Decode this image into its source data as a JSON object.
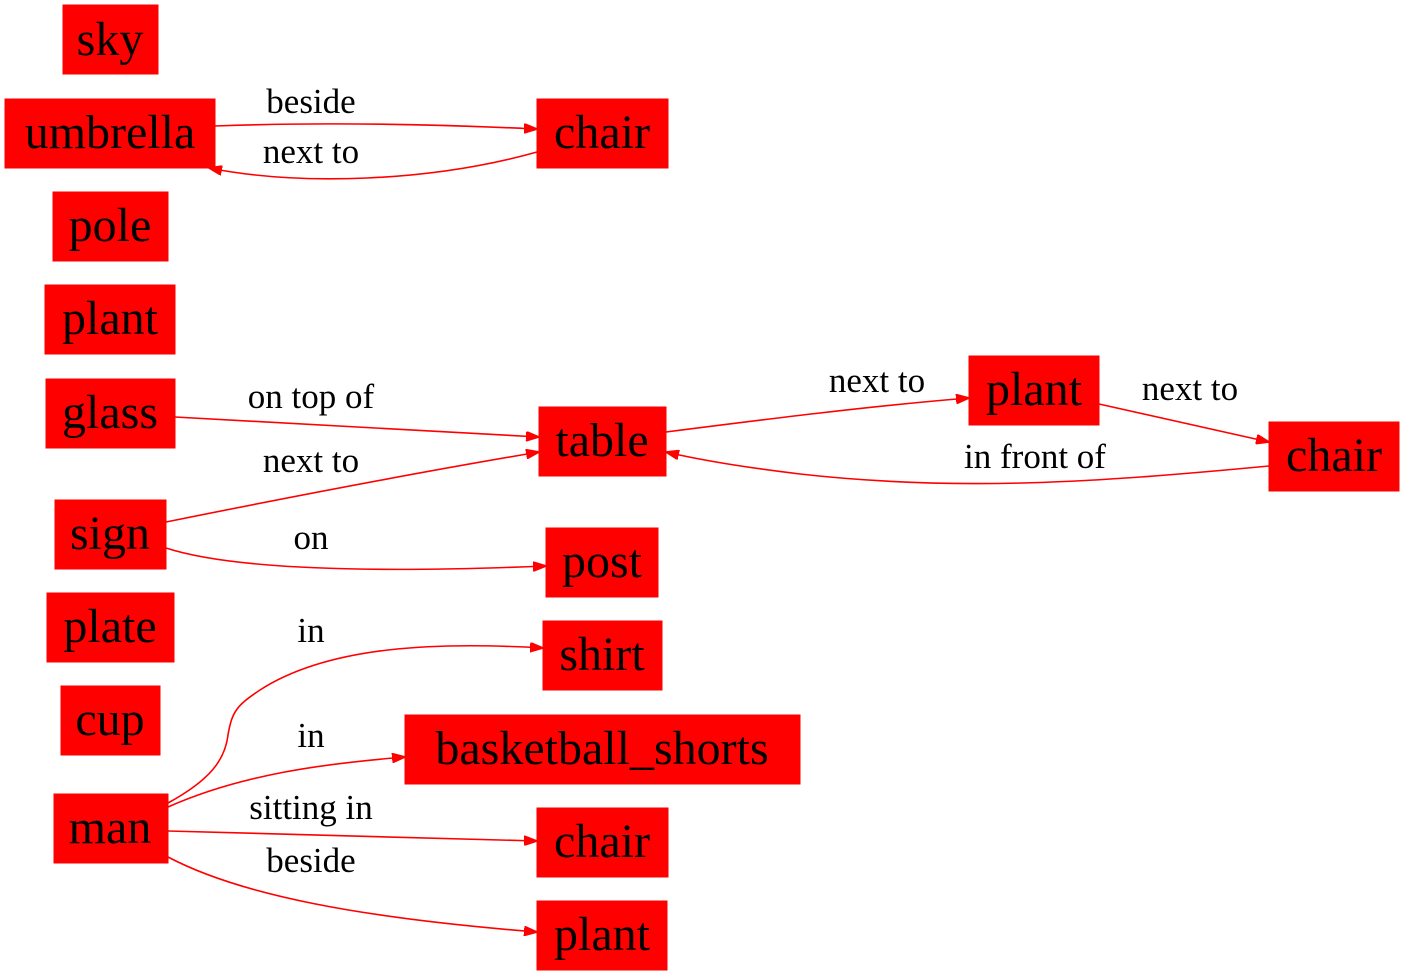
{
  "colors": {
    "node_fill": "#ff0000",
    "edge_stroke": "#ff0000",
    "text": "#000000"
  },
  "nodes": [
    {
      "id": "n_sky",
      "label": "sky"
    },
    {
      "id": "n_umbrella",
      "label": "umbrella"
    },
    {
      "id": "n_chair_top",
      "label": "chair"
    },
    {
      "id": "n_pole",
      "label": "pole"
    },
    {
      "id": "n_plant_left",
      "label": "plant"
    },
    {
      "id": "n_glass",
      "label": "glass"
    },
    {
      "id": "n_table",
      "label": "table"
    },
    {
      "id": "n_plant_mid",
      "label": "plant"
    },
    {
      "id": "n_chair_right",
      "label": "chair"
    },
    {
      "id": "n_sign",
      "label": "sign"
    },
    {
      "id": "n_post",
      "label": "post"
    },
    {
      "id": "n_plate",
      "label": "plate"
    },
    {
      "id": "n_shirt",
      "label": "shirt"
    },
    {
      "id": "n_cup",
      "label": "cup"
    },
    {
      "id": "n_shorts",
      "label": "basketball_shorts"
    },
    {
      "id": "n_man",
      "label": "man"
    },
    {
      "id": "n_chair_bottom",
      "label": "chair"
    },
    {
      "id": "n_plant_bottom",
      "label": "plant"
    }
  ],
  "edges": [
    {
      "id": "e_umbrella_chair",
      "from": "n_umbrella",
      "to": "n_chair_top",
      "label": "beside"
    },
    {
      "id": "e_chair_umbrella",
      "from": "n_chair_top",
      "to": "n_umbrella",
      "label": "next to"
    },
    {
      "id": "e_glass_table",
      "from": "n_glass",
      "to": "n_table",
      "label": "on top of"
    },
    {
      "id": "e_sign_table",
      "from": "n_sign",
      "to": "n_table",
      "label": "next to"
    },
    {
      "id": "e_sign_post",
      "from": "n_sign",
      "to": "n_post",
      "label": "on"
    },
    {
      "id": "e_table_plant",
      "from": "n_table",
      "to": "n_plant_mid",
      "label": "next to"
    },
    {
      "id": "e_plant_chair",
      "from": "n_plant_mid",
      "to": "n_chair_right",
      "label": "next to"
    },
    {
      "id": "e_chair_table",
      "from": "n_chair_right",
      "to": "n_table",
      "label": "in front of"
    },
    {
      "id": "e_man_shirt",
      "from": "n_man",
      "to": "n_shirt",
      "label": "in"
    },
    {
      "id": "e_man_shorts",
      "from": "n_man",
      "to": "n_shorts",
      "label": "in"
    },
    {
      "id": "e_man_chair",
      "from": "n_man",
      "to": "n_chair_bottom",
      "label": "sitting in"
    },
    {
      "id": "e_man_plant",
      "from": "n_man",
      "to": "n_plant_bottom",
      "label": "beside"
    }
  ]
}
